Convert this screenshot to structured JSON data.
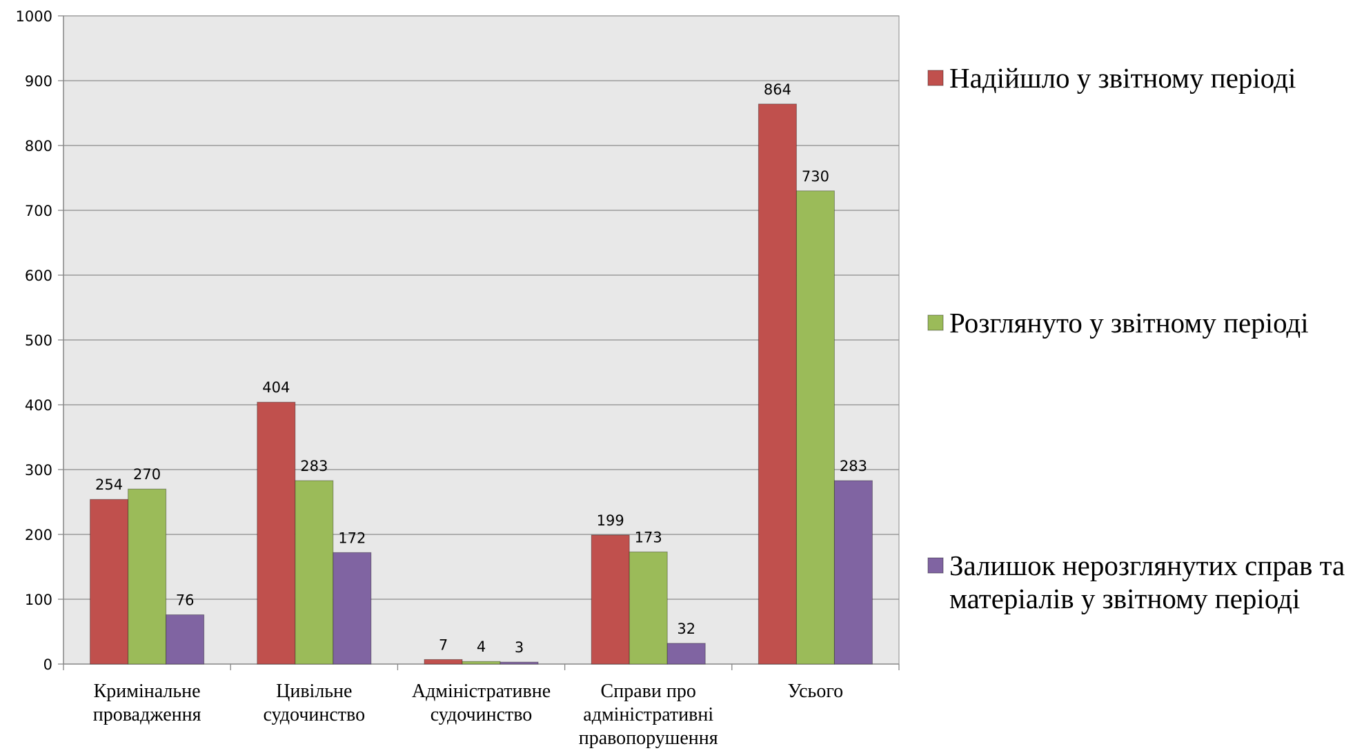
{
  "chart_data": {
    "type": "bar",
    "title": "",
    "xlabel": "",
    "ylabel": "",
    "ylim": [
      0,
      1000
    ],
    "yticks": [
      0,
      100,
      200,
      300,
      400,
      500,
      600,
      700,
      800,
      900,
      1000
    ],
    "grid": true,
    "legend_position": "right",
    "categories": [
      [
        "Кримінальне",
        "провадження"
      ],
      [
        "Цивільне",
        "судочинство"
      ],
      [
        "Адміністративне",
        "судочинство"
      ],
      [
        "Справи про",
        "адміністративні",
        "правопорушення"
      ],
      [
        "Усього"
      ]
    ],
    "series": [
      {
        "name": [
          "Надійшло у звітному періоді"
        ],
        "color": "#c0504d",
        "values": [
          254,
          404,
          7,
          199,
          864
        ]
      },
      {
        "name": [
          "Розглянуто у звітному періоді"
        ],
        "color": "#9bbb59",
        "values": [
          270,
          283,
          4,
          173,
          730
        ]
      },
      {
        "name": [
          "Залишок нерозглянутих справ та",
          "матеріалів у звітному періоді"
        ],
        "color": "#8064a2",
        "values": [
          76,
          172,
          3,
          32,
          283
        ]
      }
    ]
  }
}
